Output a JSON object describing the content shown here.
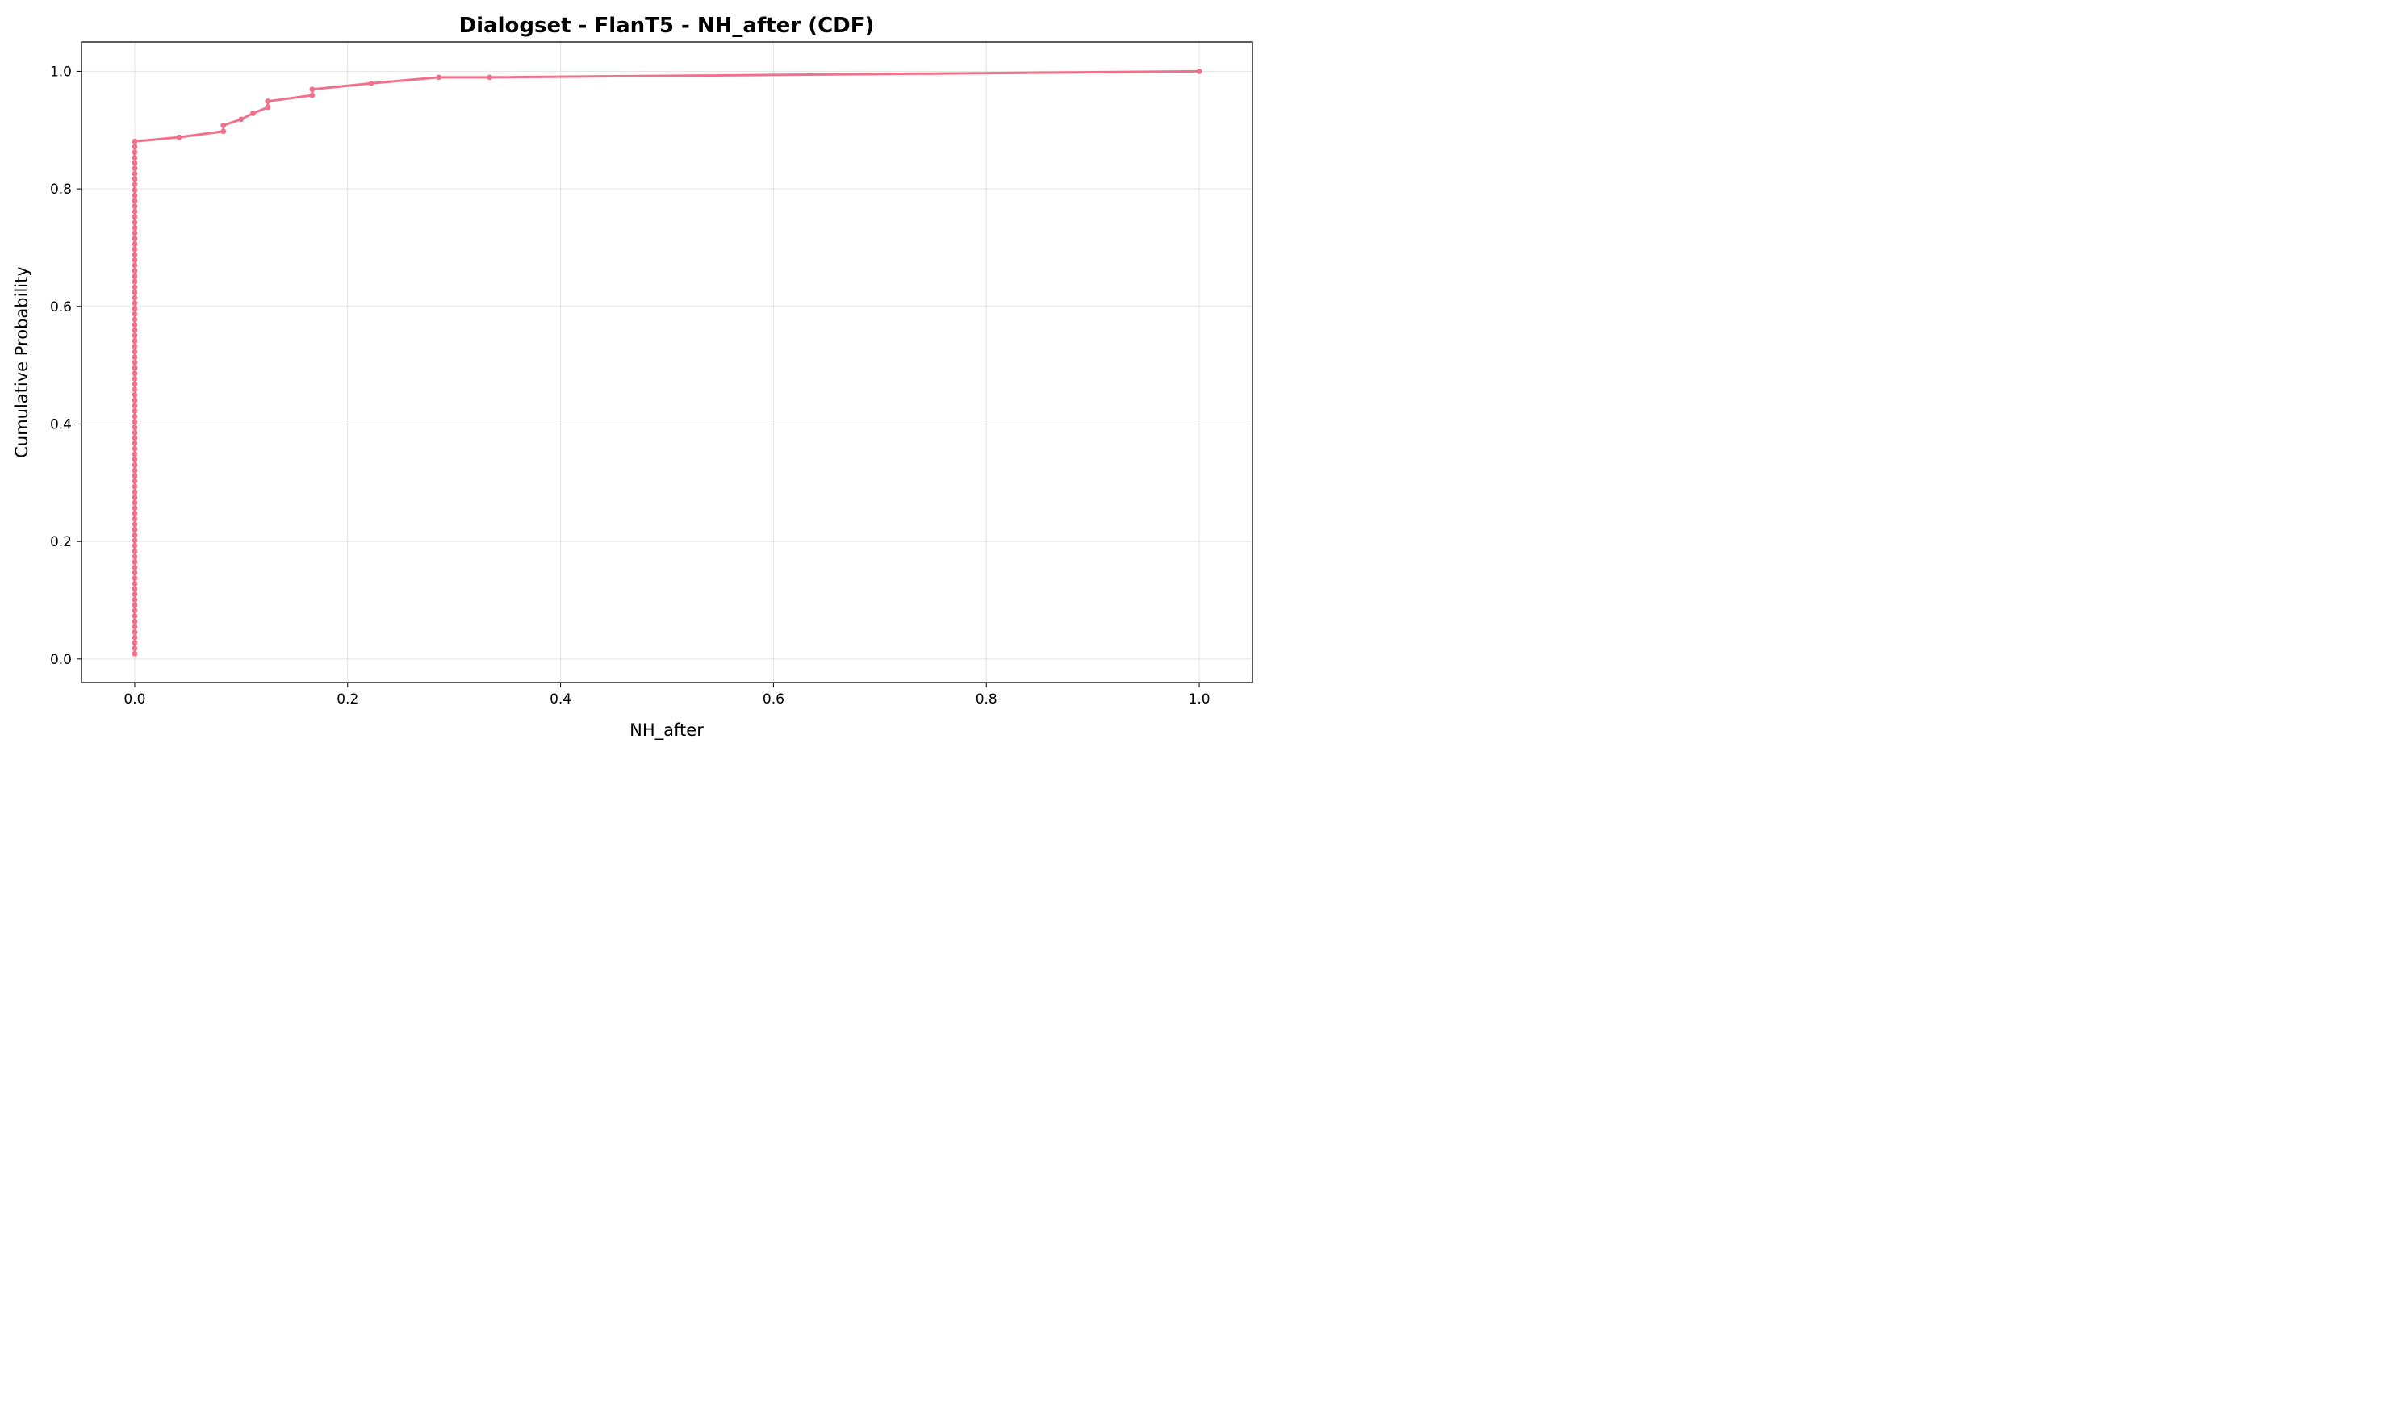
{
  "chart_data": {
    "type": "line",
    "title": "Dialogset - FlanT5 - NH_after (CDF)",
    "xlabel": "NH_after",
    "ylabel": "Cumulative Probability",
    "xlim": [
      -0.05,
      1.05
    ],
    "ylim": [
      -0.04,
      1.05
    ],
    "xticks": [
      0.0,
      0.2,
      0.4,
      0.6,
      0.8,
      1.0
    ],
    "xtick_labels": [
      "0.0",
      "0.2",
      "0.4",
      "0.6",
      "0.8",
      "1.0"
    ],
    "yticks": [
      0.0,
      0.2,
      0.4,
      0.6,
      0.8,
      1.0
    ],
    "ytick_labels": [
      "0.0",
      "0.2",
      "0.4",
      "0.6",
      "0.8",
      "1.0"
    ],
    "grid": true,
    "color": "#f07189",
    "series": [
      {
        "zero_count": 96,
        "x": [
          0.0417,
          0.0833,
          0.0833,
          0.1,
          0.1111,
          0.125,
          0.125,
          0.1667,
          0.1667,
          0.2222,
          0.2857,
          0.3333,
          1.0
        ],
        "y": [
          0.8878,
          0.898,
          0.9082,
          0.9184,
          0.9286,
          0.9388,
          0.949,
          0.9592,
          0.9694,
          0.9796,
          0.9898,
          0.9898,
          1.0
        ]
      }
    ]
  }
}
